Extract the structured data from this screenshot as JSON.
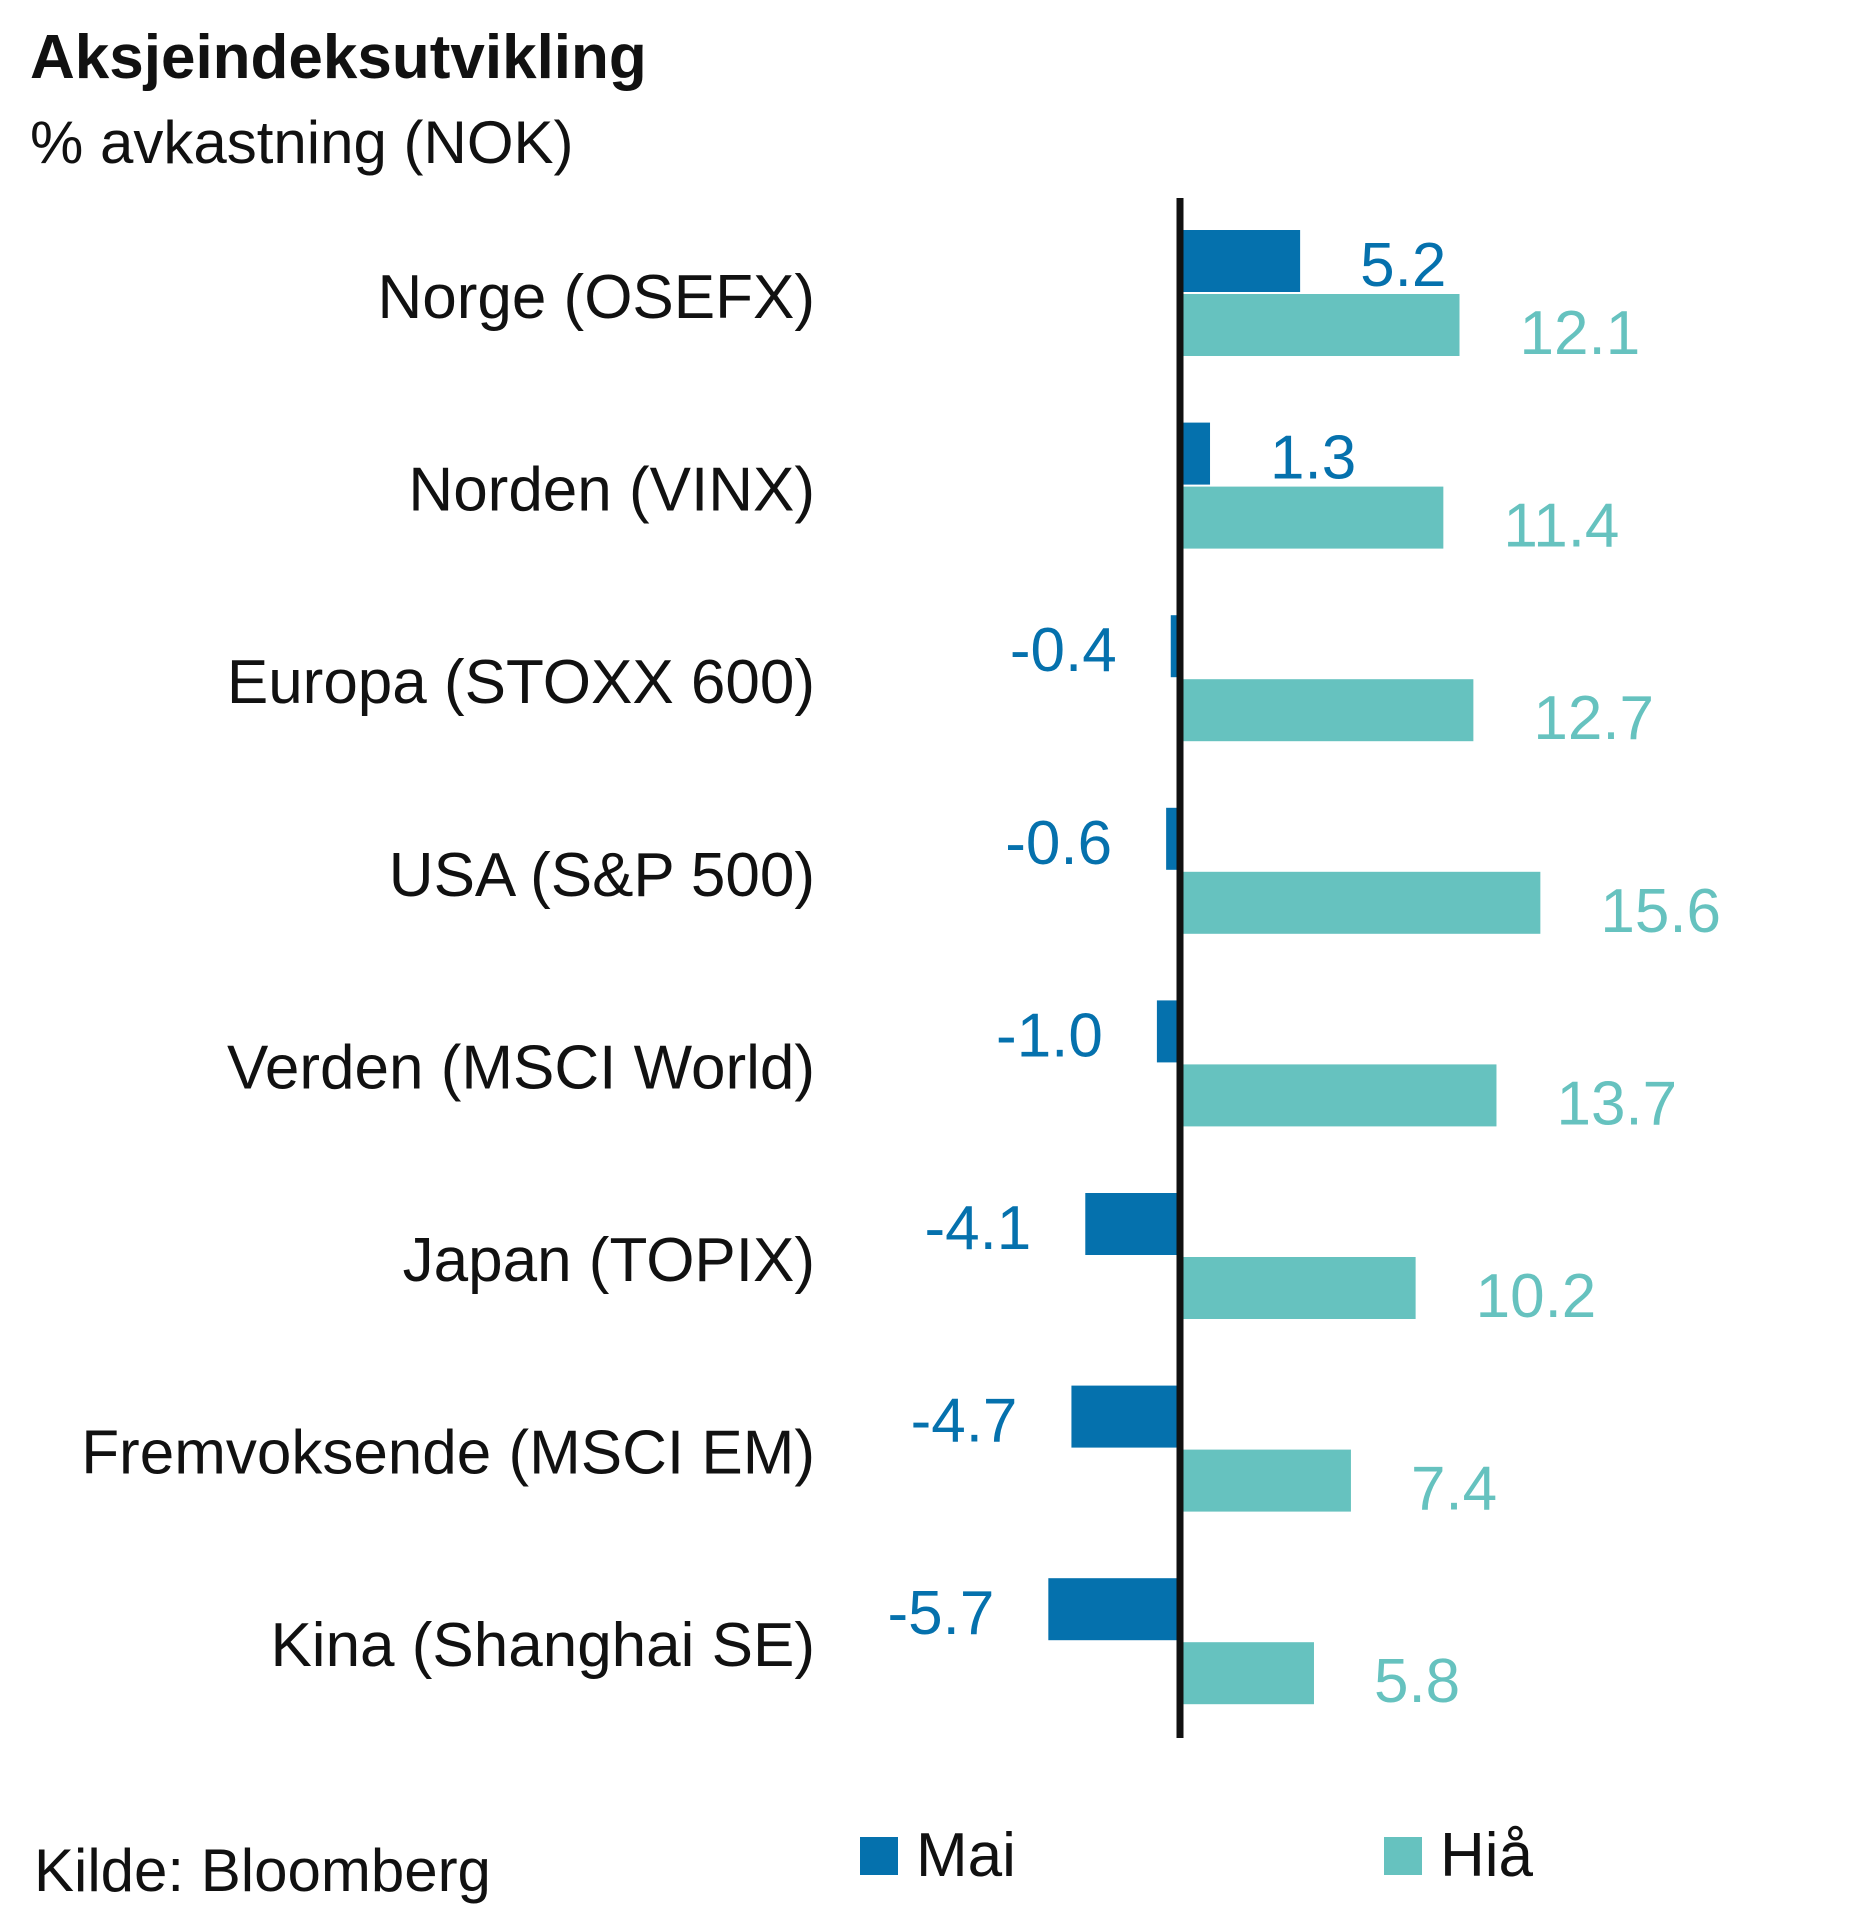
{
  "title": "Aksjeindeksutvikling",
  "subtitle": "% avkastning (NOK)",
  "source": "Kilde: Bloomberg",
  "colors": {
    "Mai": "#0571ad",
    "Hiå": "#66c2bf",
    "axis": "#111111"
  },
  "chart_data": {
    "type": "bar",
    "orientation": "horizontal",
    "categories": [
      "Norge (OSEFX)",
      "Norden (VINX)",
      "Europa (STOXX 600)",
      "USA (S&P 500)",
      "Verden (MSCI World)",
      "Japan (TOPIX)",
      "Fremvoksende (MSCI EM)",
      "Kina (Shanghai SE)"
    ],
    "series": [
      {
        "name": "Mai",
        "values": [
          5.2,
          1.3,
          -0.4,
          -0.6,
          -1.0,
          -4.1,
          -4.7,
          -5.7
        ],
        "labels": [
          "5.2",
          "1.3",
          "-0.4",
          "-0.6",
          "-1.0",
          "-4.1",
          "-4.7",
          "-5.7"
        ]
      },
      {
        "name": "Hiå",
        "values": [
          12.1,
          11.4,
          12.7,
          15.6,
          13.7,
          10.2,
          7.4,
          5.8
        ],
        "labels": [
          "12.1",
          "11.4",
          "12.7",
          "15.6",
          "13.7",
          "10.2",
          "7.4",
          "5.8"
        ]
      }
    ],
    "legend": "bottom",
    "grid": false
  }
}
